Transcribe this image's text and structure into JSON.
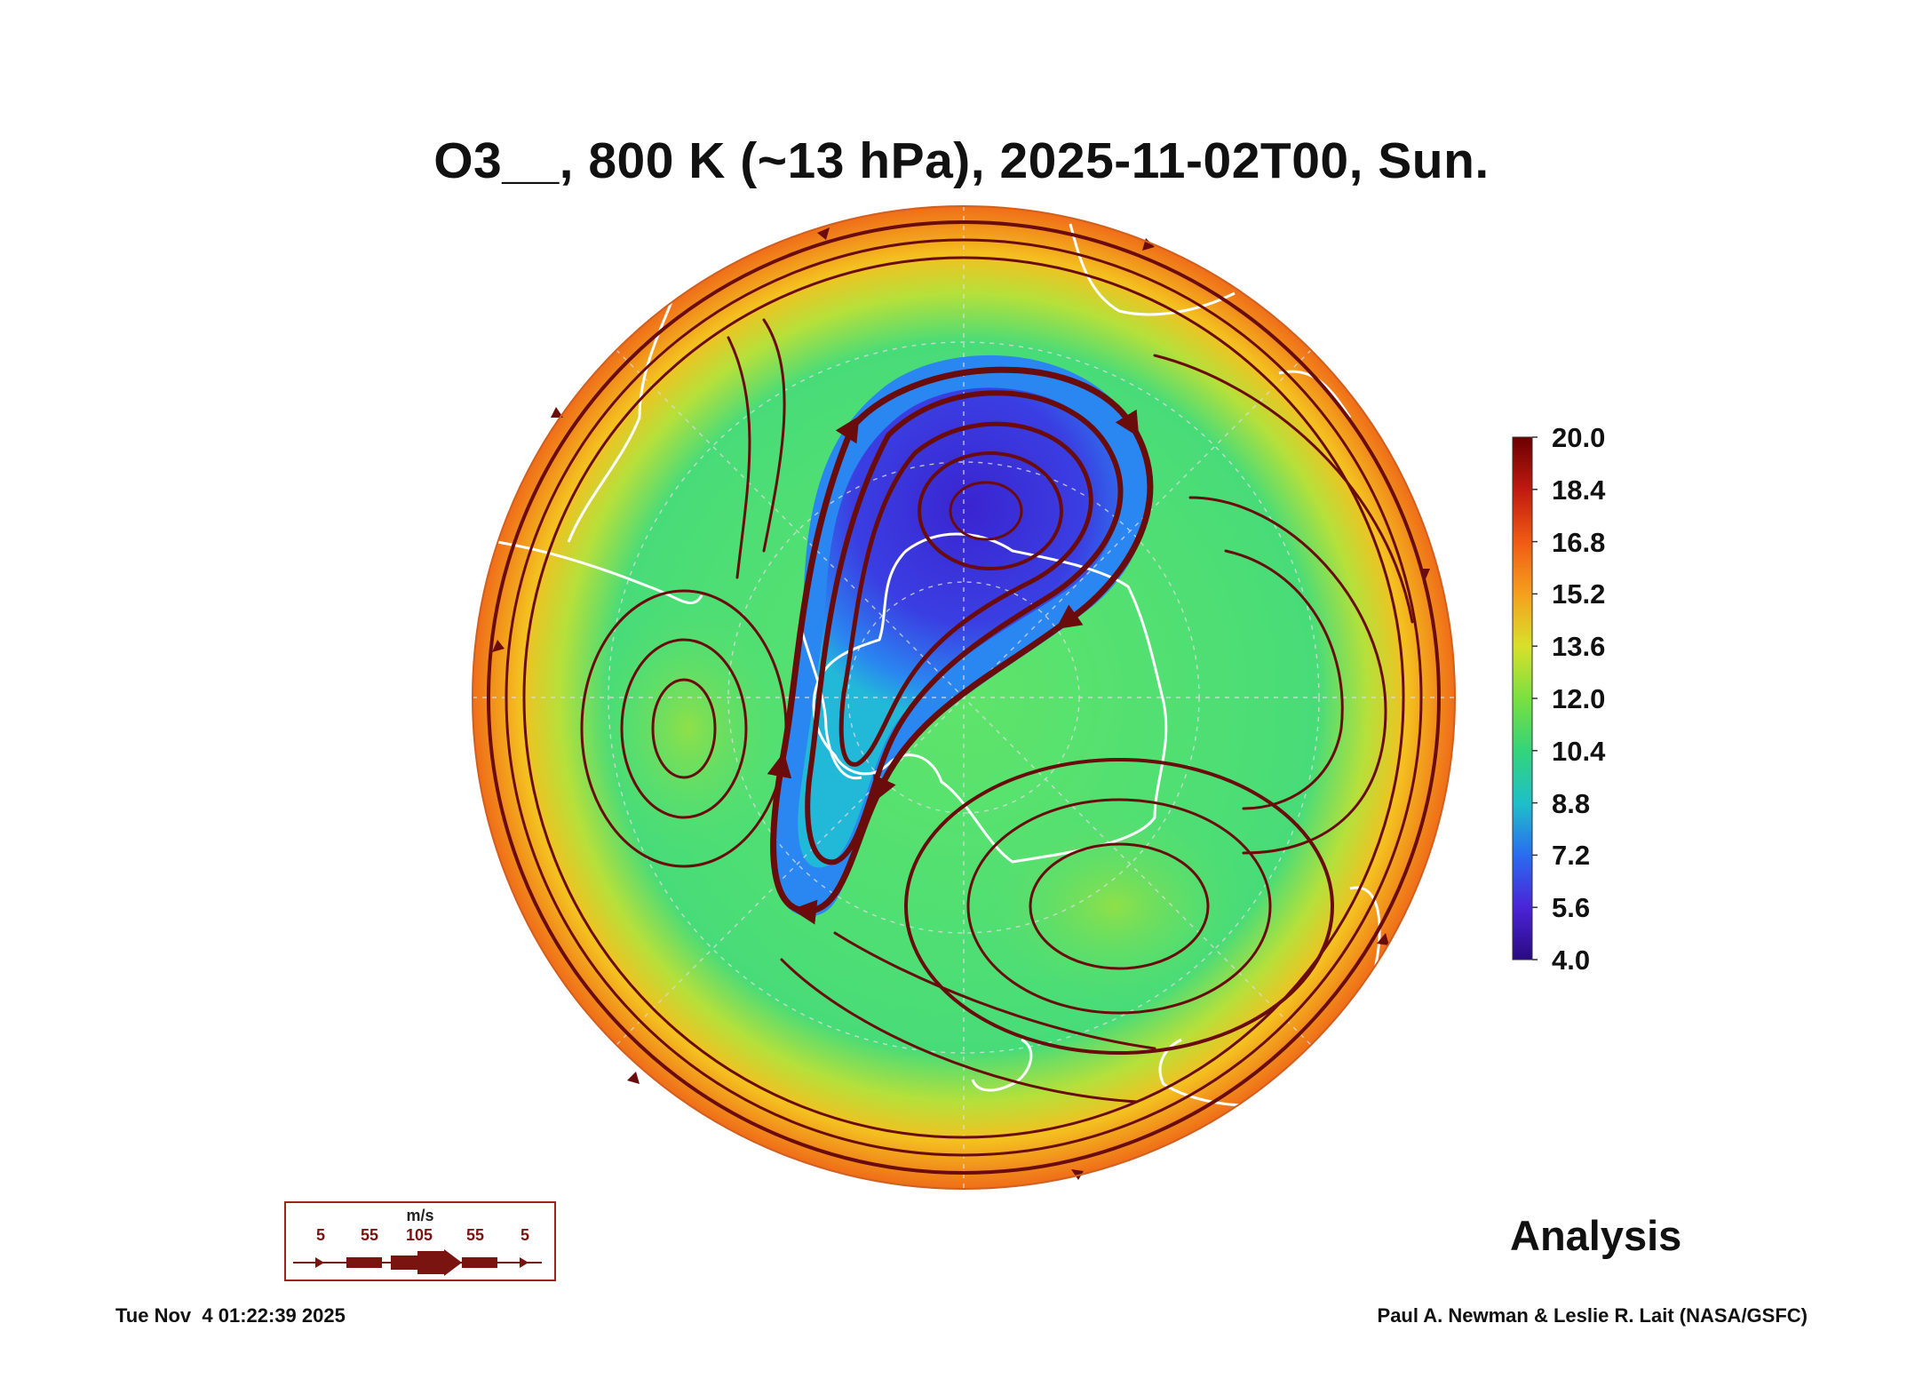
{
  "header": {
    "title": "O3__, 800 K (~13 hPa), 2025-11-02T00, Sun."
  },
  "map": {
    "projection": "south-polar stereographic",
    "field": "O3",
    "colors": {
      "vortex_core": "#3b2bd6",
      "vortex_edge": "#2a86f0",
      "midlatitude": "#4fe07a",
      "edge_ring": "#f08a1e",
      "streamline": "#6a0c0c",
      "coastline": "#ffffff"
    }
  },
  "colorbar": {
    "labels": [
      "20.0",
      "18.4",
      "16.8",
      "15.2",
      "13.6",
      "12.0",
      "10.4",
      "8.8",
      "7.2",
      "5.6",
      "4.0"
    ],
    "colors": [
      "#6a0000",
      "#c01a10",
      "#f05a14",
      "#f5a01e",
      "#d8e02a",
      "#7be040",
      "#33d47a",
      "#1ec0c8",
      "#2a6cf0",
      "#4a24d8",
      "#2a0a80"
    ]
  },
  "wind_legend": {
    "unit": "m/s",
    "labels": [
      "5",
      "55",
      "105",
      "55",
      "5"
    ]
  },
  "labels": {
    "analysis": "Analysis"
  },
  "footer": {
    "timestamp": "Tue Nov  4 01:22:39 2025",
    "credit": "Paul A. Newman & Leslie R. Lait (NASA/GSFC)"
  }
}
